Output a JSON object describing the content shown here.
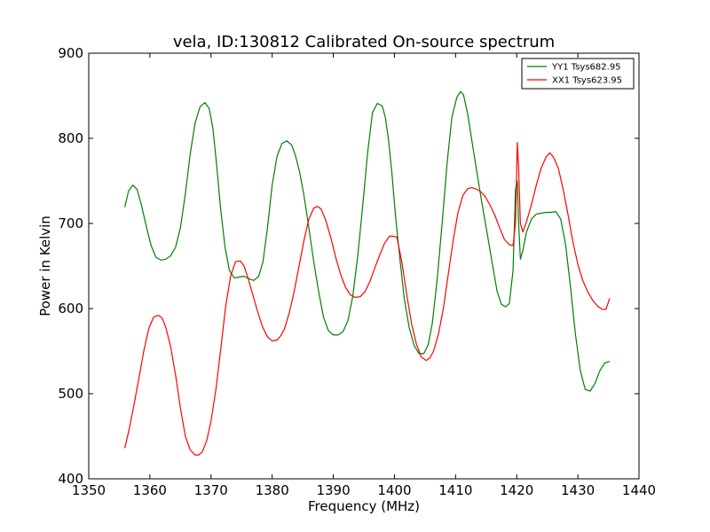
{
  "chart_data": {
    "type": "line",
    "title": "vela, ID:130812 Calibrated On-source spectrum",
    "xlabel": "Frequency (MHz)",
    "ylabel": "Power in Kelvin",
    "xlim": [
      1350,
      1440
    ],
    "ylim": [
      400,
      900
    ],
    "xticks": [
      1350,
      1360,
      1370,
      1380,
      1390,
      1400,
      1410,
      1420,
      1430,
      1440
    ],
    "yticks": [
      400,
      500,
      600,
      700,
      800,
      900
    ],
    "xtick_labels": [
      "1350",
      "1360",
      "1370",
      "1380",
      "1390",
      "1400",
      "1410",
      "1420",
      "1430",
      "1440"
    ],
    "ytick_labels": [
      "400",
      "500",
      "600",
      "700",
      "800",
      "900"
    ],
    "grid": false,
    "legend": "top-right",
    "series": [
      {
        "name": "YY1 Tsys682.95",
        "color": "#008000",
        "x": [
          1355.9,
          1356.5,
          1357.2,
          1357.9,
          1358.6,
          1359.4,
          1360.2,
          1361.0,
          1361.8,
          1362.6,
          1363.4,
          1364.2,
          1365.0,
          1365.8,
          1366.6,
          1367.4,
          1368.2,
          1369.0,
          1369.7,
          1370.3,
          1370.9,
          1371.6,
          1372.3,
          1373.0,
          1373.8,
          1374.6,
          1375.4,
          1376.2,
          1377.0,
          1377.8,
          1378.5,
          1379.2,
          1380.0,
          1380.8,
          1381.6,
          1382.4,
          1383.2,
          1383.8,
          1384.5,
          1385.2,
          1386.0,
          1386.8,
          1387.6,
          1388.4,
          1389.2,
          1390.0,
          1390.8,
          1391.6,
          1392.4,
          1393.2,
          1394.0,
          1394.8,
          1395.6,
          1396.4,
          1397.2,
          1398.0,
          1398.5,
          1399.0,
          1399.6,
          1400.2,
          1400.9,
          1401.6,
          1402.4,
          1403.2,
          1404.0,
          1404.8,
          1405.5,
          1406.2,
          1407.0,
          1407.8,
          1408.6,
          1409.4,
          1410.2,
          1410.8,
          1411.3,
          1412.0,
          1412.8,
          1413.6,
          1414.4,
          1415.2,
          1416.0,
          1416.8,
          1417.5,
          1418.2,
          1418.8,
          1419.4,
          1419.8,
          1420.1,
          1420.3,
          1420.6,
          1421.0,
          1421.6,
          1422.4,
          1423.2,
          1424.0,
          1424.8,
          1425.6,
          1426.4,
          1427.2,
          1428.0,
          1428.8,
          1429.6,
          1430.4,
          1431.2,
          1432.0,
          1432.8,
          1433.6,
          1434.4,
          1435.2
        ],
        "values": [
          719,
          738,
          745,
          740,
          722,
          697,
          674,
          660,
          657,
          658,
          662,
          672,
          695,
          735,
          782,
          818,
          837,
          842,
          835,
          812,
          770,
          715,
          672,
          645,
          636,
          637,
          638,
          635,
          633,
          638,
          655,
          693,
          745,
          779,
          794,
          797,
          792,
          780,
          760,
          733,
          695,
          655,
          620,
          590,
          574,
          569,
          569,
          573,
          586,
          615,
          662,
          720,
          782,
          830,
          841,
          838,
          825,
          800,
          758,
          707,
          658,
          612,
          578,
          557,
          547,
          547,
          557,
          583,
          635,
          700,
          770,
          825,
          848,
          855,
          851,
          828,
          791,
          755,
          720,
          687,
          653,
          620,
          605,
          602,
          606,
          645,
          740,
          750,
          702,
          658,
          668,
          690,
          705,
          711,
          712,
          713,
          713,
          714,
          705,
          675,
          625,
          570,
          527,
          505,
          503,
          512,
          527,
          536,
          538
        ]
      },
      {
        "name": "XX1 Tsys623.95",
        "color": "#ff0000",
        "x": [
          1355.9,
          1356.6,
          1357.4,
          1358.2,
          1359.0,
          1359.8,
          1360.6,
          1361.4,
          1362.0,
          1362.6,
          1363.4,
          1364.2,
          1365.0,
          1365.8,
          1366.6,
          1367.4,
          1368.0,
          1368.6,
          1369.3,
          1370.0,
          1370.8,
          1371.6,
          1372.4,
          1373.2,
          1374.0,
          1374.8,
          1375.4,
          1376.0,
          1376.8,
          1377.6,
          1378.4,
          1379.2,
          1380.0,
          1380.8,
          1381.4,
          1382.0,
          1382.8,
          1383.6,
          1384.4,
          1385.2,
          1386.0,
          1386.8,
          1387.4,
          1388.0,
          1388.8,
          1389.6,
          1390.4,
          1391.2,
          1392.0,
          1392.8,
          1393.6,
          1394.4,
          1395.2,
          1396.0,
          1396.8,
          1397.6,
          1398.4,
          1399.2,
          1399.8,
          1400.4,
          1401.2,
          1402.0,
          1402.8,
          1403.6,
          1404.4,
          1405.2,
          1405.8,
          1406.4,
          1407.2,
          1408.0,
          1408.8,
          1409.6,
          1410.4,
          1411.2,
          1412.0,
          1412.6,
          1413.2,
          1414.0,
          1414.8,
          1415.6,
          1416.4,
          1417.2,
          1418.0,
          1418.8,
          1419.4,
          1419.8,
          1420.1,
          1420.3,
          1420.6,
          1421.0,
          1421.6,
          1422.4,
          1423.2,
          1424.0,
          1424.8,
          1425.4,
          1426.0,
          1426.8,
          1427.6,
          1428.4,
          1429.2,
          1430.0,
          1430.8,
          1431.6,
          1432.4,
          1433.2,
          1434.0,
          1434.6,
          1435.2
        ],
        "values": [
          436,
          458,
          487,
          518,
          550,
          576,
          590,
          592,
          589,
          578,
          555,
          522,
          483,
          450,
          434,
          428,
          428,
          432,
          445,
          468,
          505,
          553,
          603,
          638,
          655,
          656,
          650,
          637,
          617,
          597,
          579,
          567,
          562,
          563,
          568,
          576,
          595,
          620,
          650,
          680,
          705,
          718,
          720,
          717,
          703,
          683,
          660,
          640,
          625,
          616,
          613,
          614,
          620,
          632,
          648,
          663,
          677,
          685,
          685,
          684,
          655,
          617,
          582,
          558,
          543,
          539,
          542,
          550,
          570,
          600,
          640,
          680,
          713,
          733,
          741,
          742,
          741,
          738,
          732,
          722,
          710,
          695,
          681,
          675,
          674,
          700,
          795,
          768,
          700,
          690,
          702,
          722,
          745,
          765,
          778,
          783,
          778,
          765,
          740,
          710,
          678,
          652,
          633,
          620,
          610,
          603,
          599,
          599,
          612
        ]
      }
    ]
  }
}
